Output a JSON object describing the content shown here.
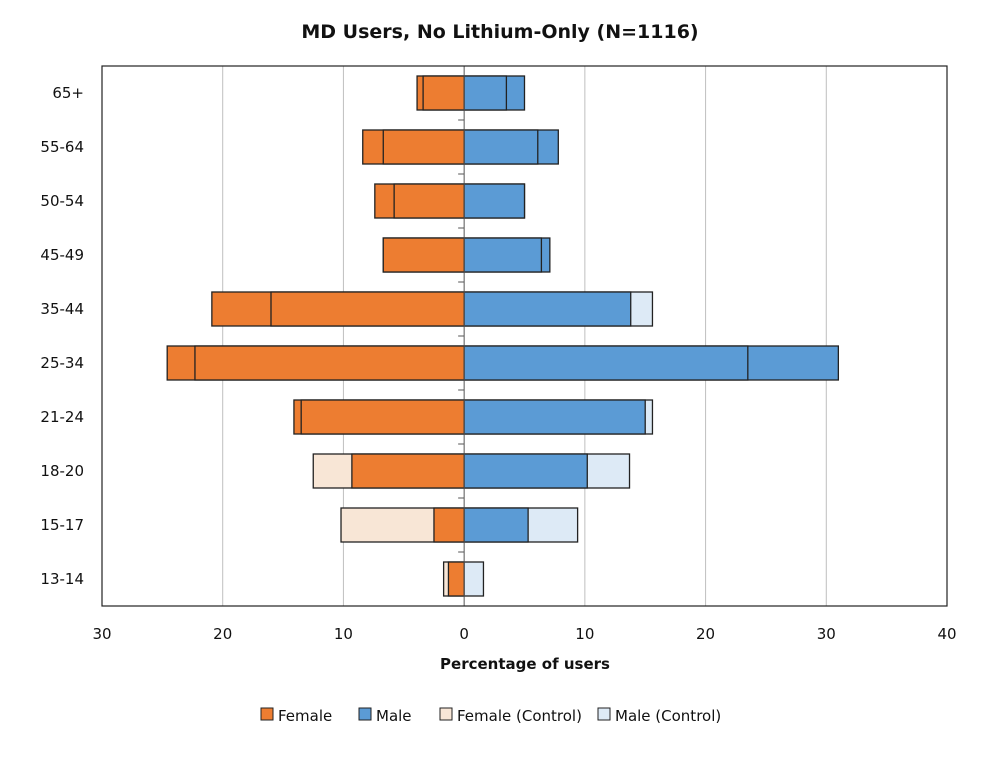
{
  "chart_data": {
    "type": "bar",
    "orientation": "horizontal-pyramid",
    "title": "MD Users, No Lithium-Only (N=1116)",
    "xlabel": "Percentage of users",
    "ylabel": "",
    "xlim": [
      -30,
      40
    ],
    "xticks": [
      -30,
      -20,
      -10,
      0,
      10,
      20,
      30,
      40
    ],
    "xtick_labels": [
      "30",
      "20",
      "10",
      "0",
      "10",
      "20",
      "30",
      "40"
    ],
    "grid": true,
    "legend_position": "bottom",
    "categories": [
      "65+",
      "55-64",
      "50-54",
      "45-49",
      "35-44",
      "25-34",
      "21-24",
      "18-20",
      "15-17",
      "13-14"
    ],
    "series": [
      {
        "name": "Female",
        "color": "#ED7D31",
        "values": [
          3.9,
          8.4,
          7.4,
          6.7,
          20.9,
          24.6,
          14.1,
          9.3,
          2.5,
          1.3
        ]
      },
      {
        "name": "Male",
        "color": "#5B9BD5",
        "values": [
          5.0,
          7.8,
          5.0,
          7.1,
          13.8,
          31.0,
          15.0,
          10.2,
          5.3,
          0.0
        ]
      },
      {
        "name": "Female (Control)",
        "color": "#F8E6D6",
        "values": [
          3.4,
          6.7,
          5.8,
          6.7,
          16.0,
          22.3,
          13.5,
          12.5,
          10.2,
          1.7
        ]
      },
      {
        "name": "Male (Control)",
        "color": "#DDEAF6",
        "values": [
          3.5,
          6.1,
          5.0,
          6.4,
          15.6,
          23.5,
          15.6,
          13.7,
          9.4,
          1.6
        ]
      }
    ]
  }
}
